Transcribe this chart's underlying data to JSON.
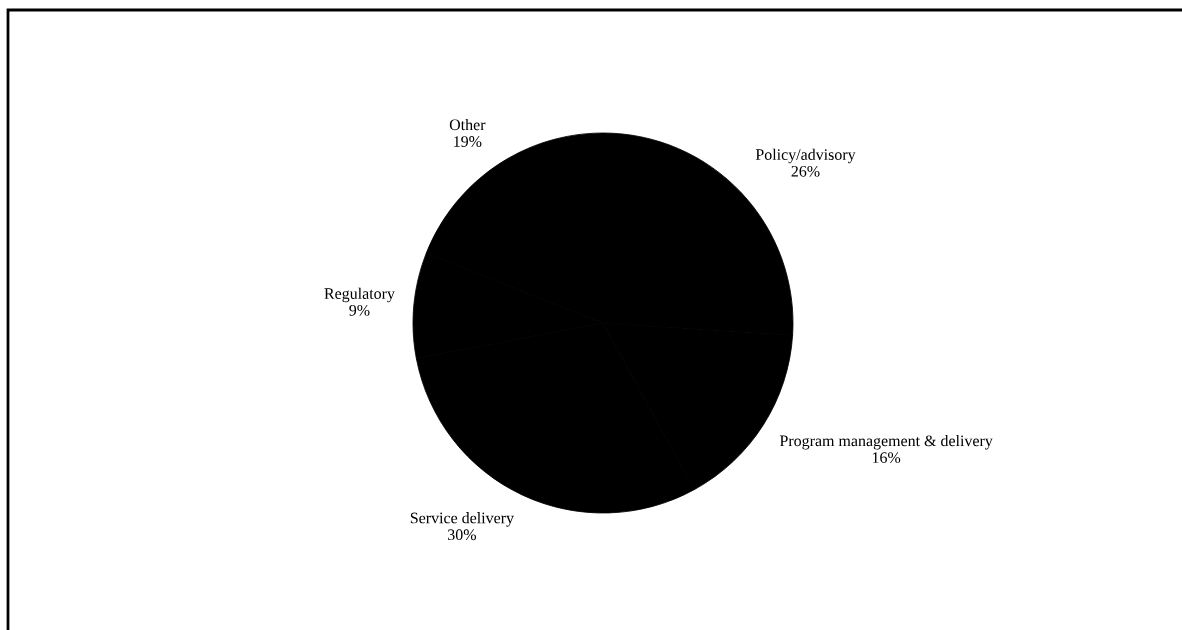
{
  "chart_data": {
    "type": "pie",
    "categories": [
      "Policy/advisory",
      "Program management & delivery",
      "Service delivery",
      "Regulatory",
      "Other"
    ],
    "values": [
      26,
      16,
      30,
      9,
      19
    ],
    "value_labels": [
      "26%",
      "16%",
      "30%",
      "9%",
      "19%"
    ],
    "colors": [
      "#000000",
      "#000000",
      "#000000",
      "#000000",
      "#000000"
    ]
  }
}
